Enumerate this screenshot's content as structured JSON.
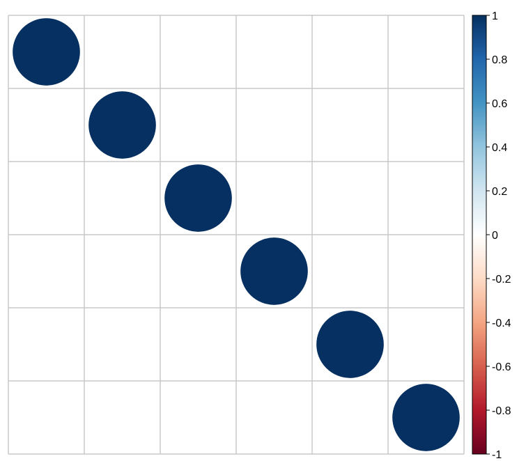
{
  "chart_data": {
    "type": "heatmap",
    "style": "corrplot-circle",
    "title": "",
    "xlabel": "",
    "ylabel": "",
    "n": 6,
    "matrix": [
      [
        1,
        0,
        0,
        0,
        0,
        0
      ],
      [
        0,
        1,
        0,
        0,
        0,
        0
      ],
      [
        0,
        0,
        1,
        0,
        0,
        0
      ],
      [
        0,
        0,
        0,
        1,
        0,
        0
      ],
      [
        0,
        0,
        0,
        0,
        1,
        0
      ],
      [
        0,
        0,
        0,
        0,
        0,
        1
      ]
    ],
    "row_labels": [],
    "col_labels": [],
    "grid": true,
    "colorbar": {
      "range": [
        -1,
        1
      ],
      "ticks": [
        "1",
        "0.8",
        "0.6",
        "0.4",
        "0.2",
        "0",
        "-0.2",
        "-0.4",
        "-0.6",
        "-0.8",
        "-1"
      ],
      "tick_values": [
        1,
        0.8,
        0.6,
        0.4,
        0.2,
        0,
        -0.2,
        -0.4,
        -0.6,
        -0.8,
        -1
      ],
      "colors": [
        "#67001F",
        "#B2182B",
        "#D6604D",
        "#F4A582",
        "#FDDBC7",
        "#FFFFFF",
        "#D1E5F0",
        "#92C5DE",
        "#4393C3",
        "#2166AC",
        "#053061"
      ],
      "placement": "right"
    },
    "grid_color": "#c8c8c8",
    "circle_color": "#053061"
  }
}
